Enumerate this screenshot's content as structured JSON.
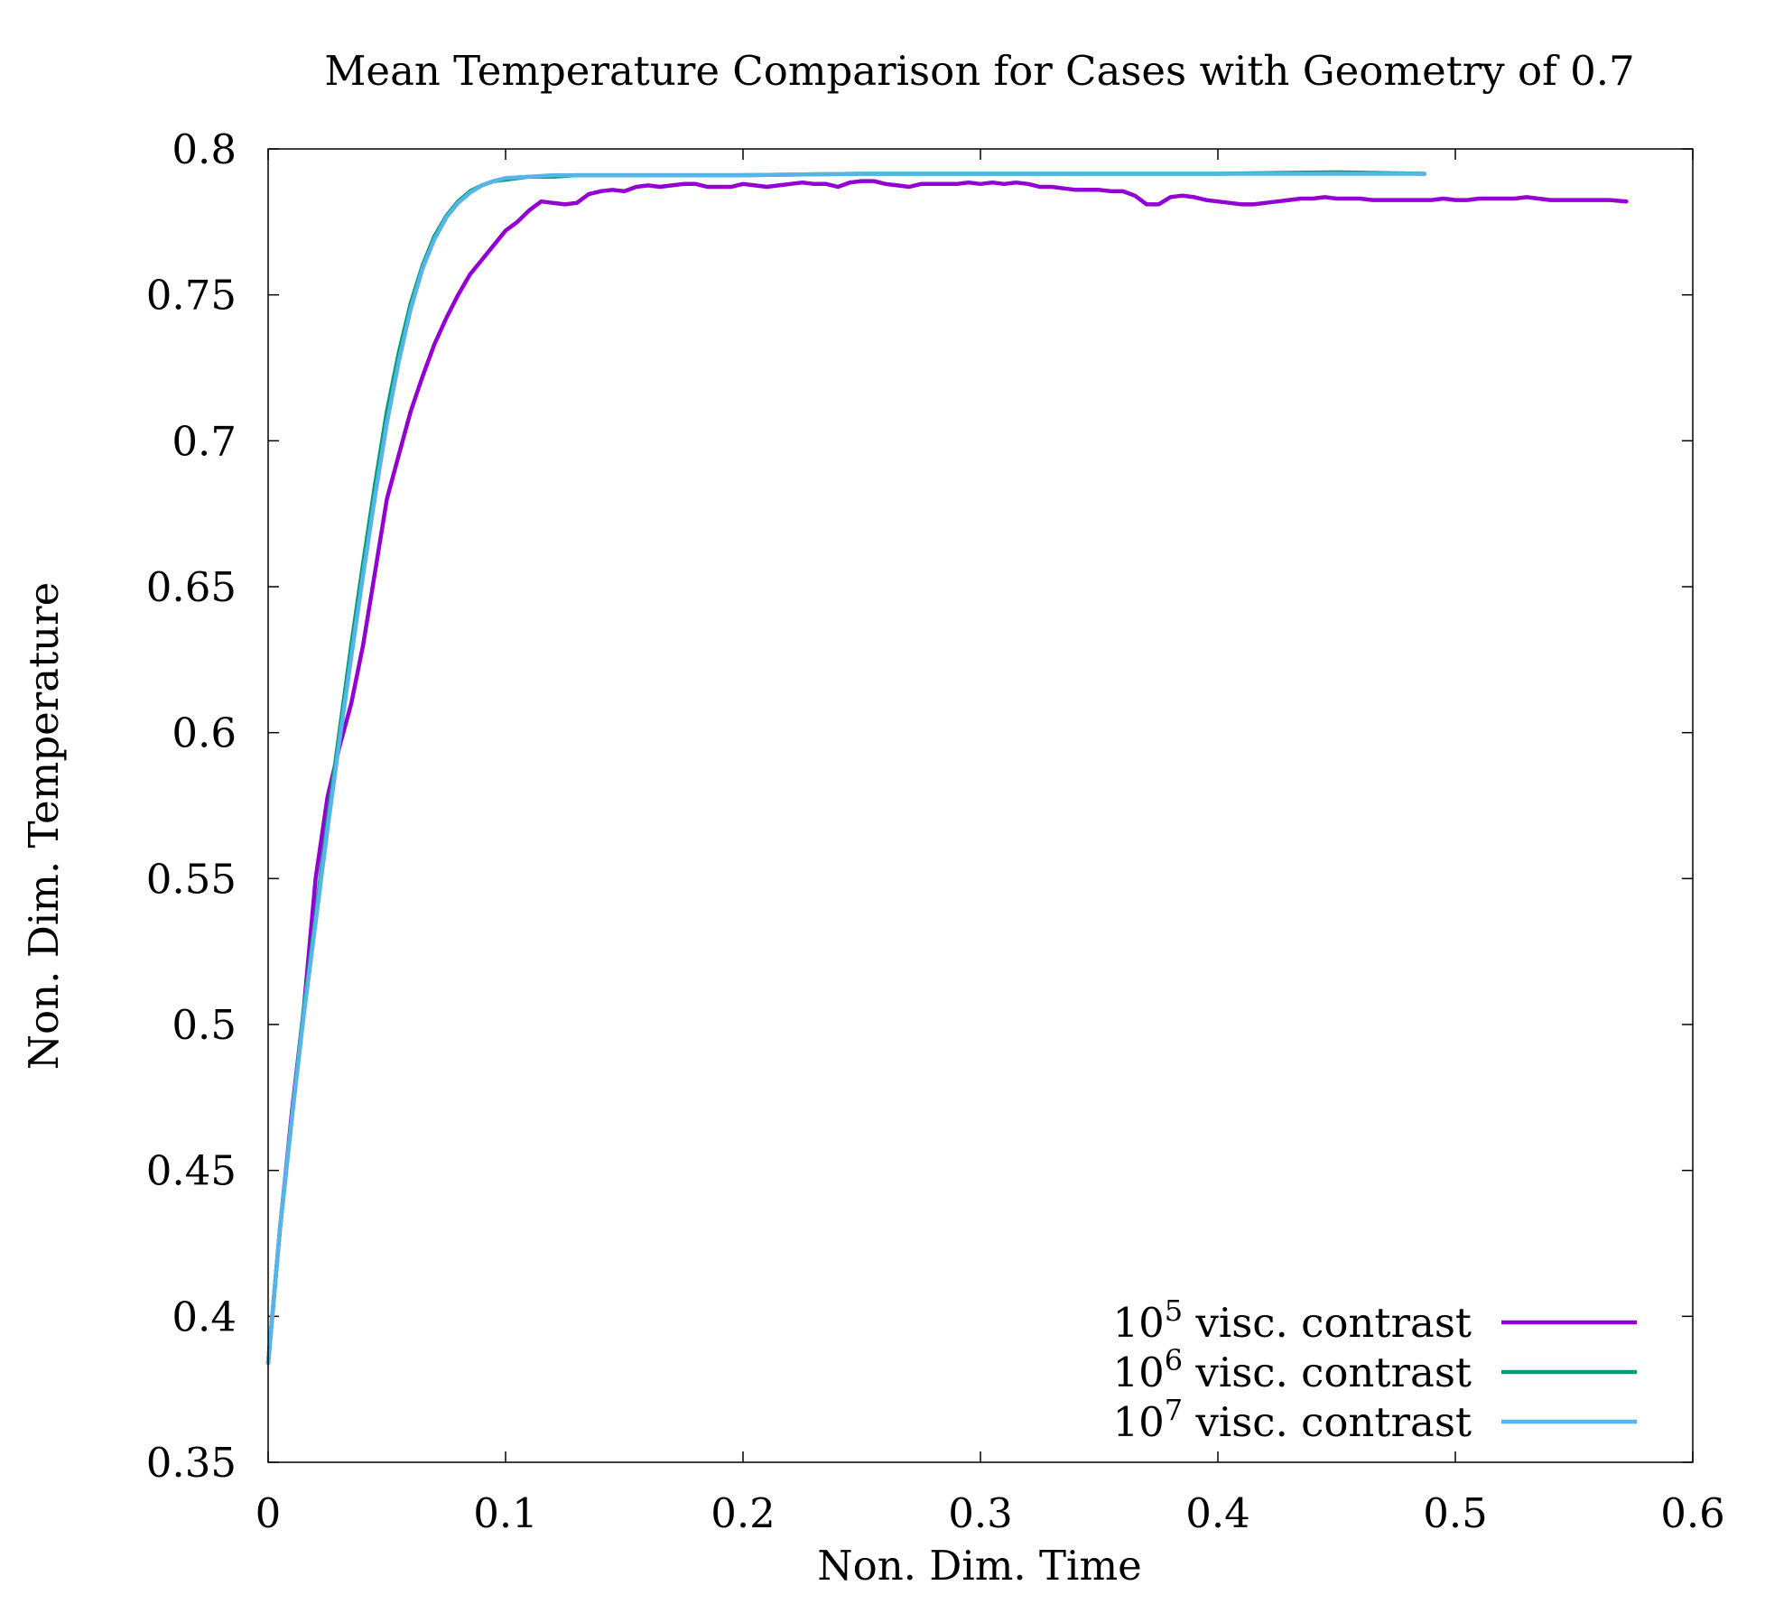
{
  "chart_data": {
    "type": "line",
    "title": "Mean Temperature Comparison for Cases with Geometry of 0.7",
    "xlabel": "Non. Dim. Time",
    "ylabel": "Non. Dim. Temperature",
    "xlim": [
      0,
      0.6
    ],
    "ylim": [
      0.35,
      0.8
    ],
    "xticks": [
      "0",
      "0.1",
      "0.2",
      "0.3",
      "0.4",
      "0.5",
      "0.6"
    ],
    "yticks": [
      "0.35",
      "0.4",
      "0.45",
      "0.5",
      "0.55",
      "0.6",
      "0.65",
      "0.7",
      "0.75",
      "0.8"
    ],
    "grid": false,
    "legend_position": "bottom-right",
    "series": [
      {
        "name_base": "10",
        "name_exp": "5",
        "name_rest": " visc. contrast",
        "color": "#9400d3",
        "points": [
          [
            0,
            0.384
          ],
          [
            0.005,
            0.43
          ],
          [
            0.01,
            0.47
          ],
          [
            0.015,
            0.505
          ],
          [
            0.02,
            0.55
          ],
          [
            0.025,
            0.578
          ],
          [
            0.03,
            0.595
          ],
          [
            0.035,
            0.61
          ],
          [
            0.04,
            0.63
          ],
          [
            0.045,
            0.655
          ],
          [
            0.05,
            0.68
          ],
          [
            0.055,
            0.695
          ],
          [
            0.06,
            0.71
          ],
          [
            0.065,
            0.722
          ],
          [
            0.07,
            0.733
          ],
          [
            0.075,
            0.742
          ],
          [
            0.08,
            0.75
          ],
          [
            0.085,
            0.757
          ],
          [
            0.09,
            0.762
          ],
          [
            0.095,
            0.767
          ],
          [
            0.1,
            0.772
          ],
          [
            0.105,
            0.775
          ],
          [
            0.11,
            0.779
          ],
          [
            0.115,
            0.782
          ],
          [
            0.12,
            0.7815
          ],
          [
            0.125,
            0.781
          ],
          [
            0.13,
            0.7815
          ],
          [
            0.135,
            0.7845
          ],
          [
            0.14,
            0.7855
          ],
          [
            0.145,
            0.786
          ],
          [
            0.15,
            0.7855
          ],
          [
            0.155,
            0.787
          ],
          [
            0.16,
            0.7875
          ],
          [
            0.165,
            0.787
          ],
          [
            0.17,
            0.7875
          ],
          [
            0.175,
            0.788
          ],
          [
            0.18,
            0.788
          ],
          [
            0.185,
            0.787
          ],
          [
            0.19,
            0.787
          ],
          [
            0.195,
            0.787
          ],
          [
            0.2,
            0.788
          ],
          [
            0.205,
            0.7875
          ],
          [
            0.21,
            0.787
          ],
          [
            0.215,
            0.7875
          ],
          [
            0.22,
            0.788
          ],
          [
            0.225,
            0.7885
          ],
          [
            0.23,
            0.788
          ],
          [
            0.235,
            0.788
          ],
          [
            0.24,
            0.787
          ],
          [
            0.245,
            0.7885
          ],
          [
            0.25,
            0.789
          ],
          [
            0.255,
            0.789
          ],
          [
            0.26,
            0.788
          ],
          [
            0.265,
            0.7875
          ],
          [
            0.27,
            0.787
          ],
          [
            0.275,
            0.788
          ],
          [
            0.28,
            0.788
          ],
          [
            0.285,
            0.788
          ],
          [
            0.29,
            0.788
          ],
          [
            0.295,
            0.7885
          ],
          [
            0.3,
            0.788
          ],
          [
            0.305,
            0.7885
          ],
          [
            0.31,
            0.788
          ],
          [
            0.315,
            0.7885
          ],
          [
            0.32,
            0.788
          ],
          [
            0.325,
            0.787
          ],
          [
            0.33,
            0.787
          ],
          [
            0.335,
            0.7865
          ],
          [
            0.34,
            0.786
          ],
          [
            0.345,
            0.786
          ],
          [
            0.35,
            0.786
          ],
          [
            0.355,
            0.7855
          ],
          [
            0.36,
            0.7855
          ],
          [
            0.365,
            0.784
          ],
          [
            0.37,
            0.781
          ],
          [
            0.375,
            0.781
          ],
          [
            0.38,
            0.7835
          ],
          [
            0.385,
            0.784
          ],
          [
            0.39,
            0.7835
          ],
          [
            0.395,
            0.7825
          ],
          [
            0.4,
            0.782
          ],
          [
            0.405,
            0.7815
          ],
          [
            0.41,
            0.781
          ],
          [
            0.415,
            0.781
          ],
          [
            0.42,
            0.7815
          ],
          [
            0.425,
            0.782
          ],
          [
            0.43,
            0.7825
          ],
          [
            0.435,
            0.783
          ],
          [
            0.44,
            0.783
          ],
          [
            0.445,
            0.7835
          ],
          [
            0.45,
            0.783
          ],
          [
            0.455,
            0.783
          ],
          [
            0.46,
            0.783
          ],
          [
            0.465,
            0.7825
          ],
          [
            0.47,
            0.7825
          ],
          [
            0.475,
            0.7825
          ],
          [
            0.48,
            0.7825
          ],
          [
            0.485,
            0.7825
          ],
          [
            0.49,
            0.7825
          ],
          [
            0.495,
            0.783
          ],
          [
            0.5,
            0.7825
          ],
          [
            0.505,
            0.7825
          ],
          [
            0.51,
            0.783
          ],
          [
            0.515,
            0.783
          ],
          [
            0.52,
            0.783
          ],
          [
            0.525,
            0.783
          ],
          [
            0.53,
            0.7835
          ],
          [
            0.535,
            0.783
          ],
          [
            0.54,
            0.7825
          ],
          [
            0.545,
            0.7825
          ],
          [
            0.55,
            0.7825
          ],
          [
            0.555,
            0.7825
          ],
          [
            0.56,
            0.7825
          ],
          [
            0.565,
            0.7825
          ],
          [
            0.572,
            0.782
          ]
        ]
      },
      {
        "name_base": "10",
        "name_exp": "6",
        "name_rest": " visc. contrast",
        "color": "#009e73",
        "points": [
          [
            0,
            0.384
          ],
          [
            0.005,
            0.43
          ],
          [
            0.01,
            0.468
          ],
          [
            0.015,
            0.505
          ],
          [
            0.02,
            0.537
          ],
          [
            0.025,
            0.57
          ],
          [
            0.03,
            0.6
          ],
          [
            0.035,
            0.63
          ],
          [
            0.04,
            0.658
          ],
          [
            0.045,
            0.685
          ],
          [
            0.05,
            0.71
          ],
          [
            0.055,
            0.73
          ],
          [
            0.06,
            0.747
          ],
          [
            0.065,
            0.76
          ],
          [
            0.07,
            0.77
          ],
          [
            0.075,
            0.777
          ],
          [
            0.08,
            0.782
          ],
          [
            0.085,
            0.7855
          ],
          [
            0.09,
            0.7875
          ],
          [
            0.095,
            0.789
          ],
          [
            0.1,
            0.7895
          ],
          [
            0.11,
            0.7905
          ],
          [
            0.12,
            0.7905
          ],
          [
            0.13,
            0.791
          ],
          [
            0.15,
            0.791
          ],
          [
            0.2,
            0.791
          ],
          [
            0.25,
            0.7915
          ],
          [
            0.3,
            0.7915
          ],
          [
            0.35,
            0.7915
          ],
          [
            0.4,
            0.7915
          ],
          [
            0.45,
            0.792
          ],
          [
            0.487,
            0.7915
          ]
        ]
      },
      {
        "name_base": "10",
        "name_exp": "7",
        "name_rest": " visc. contrast",
        "color": "#56b4e9",
        "points": [
          [
            0,
            0.384
          ],
          [
            0.005,
            0.43
          ],
          [
            0.01,
            0.468
          ],
          [
            0.015,
            0.503
          ],
          [
            0.02,
            0.535
          ],
          [
            0.025,
            0.567
          ],
          [
            0.03,
            0.597
          ],
          [
            0.035,
            0.626
          ],
          [
            0.04,
            0.654
          ],
          [
            0.045,
            0.681
          ],
          [
            0.05,
            0.706
          ],
          [
            0.055,
            0.727
          ],
          [
            0.06,
            0.745
          ],
          [
            0.065,
            0.759
          ],
          [
            0.07,
            0.769
          ],
          [
            0.075,
            0.7765
          ],
          [
            0.08,
            0.7815
          ],
          [
            0.085,
            0.785
          ],
          [
            0.09,
            0.7875
          ],
          [
            0.095,
            0.789
          ],
          [
            0.1,
            0.79
          ],
          [
            0.11,
            0.7905
          ],
          [
            0.12,
            0.791
          ],
          [
            0.15,
            0.791
          ],
          [
            0.2,
            0.791
          ],
          [
            0.25,
            0.7915
          ],
          [
            0.3,
            0.7915
          ],
          [
            0.35,
            0.7915
          ],
          [
            0.4,
            0.7915
          ],
          [
            0.45,
            0.7915
          ],
          [
            0.487,
            0.7915
          ]
        ]
      }
    ]
  }
}
